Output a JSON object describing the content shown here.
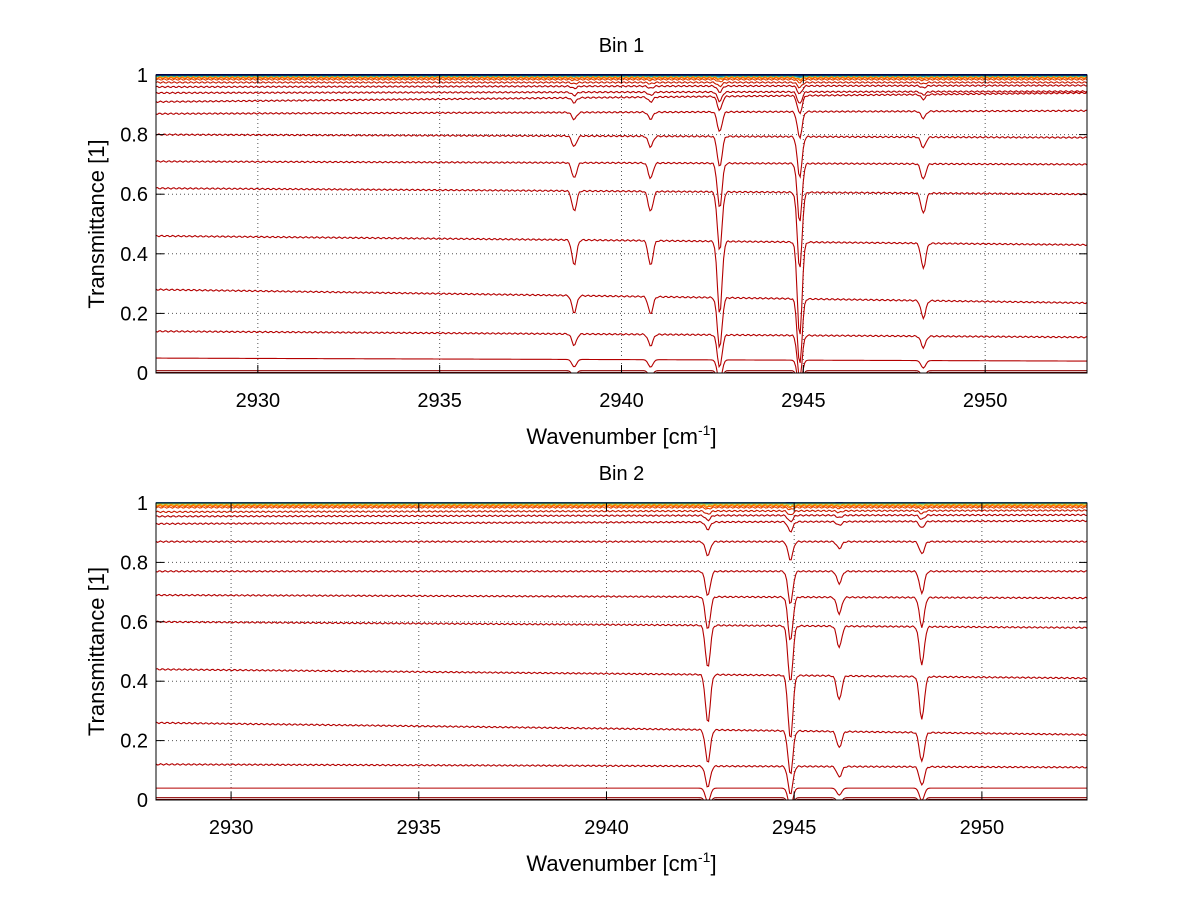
{
  "chart_data": [
    {
      "type": "line",
      "title": "Bin 1",
      "xlabel": "Wavenumber [cm",
      "xlabel_sup": "-1",
      "xlabel_tail": "]",
      "ylabel": "Transmittance [1]",
      "xlim": [
        2927.2,
        2952.8
      ],
      "ylim": [
        0,
        1
      ],
      "xticks": [
        "2930",
        "2935",
        "2940",
        "2945",
        "2950"
      ],
      "xtick_values": [
        2930,
        2935,
        2940,
        2945,
        2950
      ],
      "yticks": [
        "0",
        "0.2",
        "0.4",
        "0.6",
        "0.8",
        "1"
      ],
      "ytick_values": [
        0,
        0.2,
        0.4,
        0.6,
        0.8,
        1
      ],
      "grid": true,
      "absorption_lines": [
        {
          "x": 2938.7,
          "w": 0.9
        },
        {
          "x": 2940.8,
          "w": 0.9
        },
        {
          "x": 2942.7,
          "w": 2.6
        },
        {
          "x": 2944.9,
          "w": 3.4
        },
        {
          "x": 2948.3,
          "w": 0.9
        }
      ],
      "series": [
        {
          "start": 1.0,
          "end": 1.0,
          "color": "#00008f"
        },
        {
          "start": 0.998,
          "end": 0.998,
          "color": "#005fbf"
        },
        {
          "start": 0.995,
          "end": 0.995,
          "color": "#20b0a0"
        },
        {
          "start": 0.992,
          "end": 0.992,
          "color": "#f0a000"
        },
        {
          "start": 0.99,
          "end": 0.99,
          "color": "#ff6a00"
        },
        {
          "start": 0.985,
          "end": 0.985,
          "color": "#e04000"
        },
        {
          "start": 0.975,
          "end": 0.975,
          "color": "#c81a00"
        },
        {
          "start": 0.96,
          "end": 0.965,
          "color": "#b40000"
        },
        {
          "start": 0.94,
          "end": 0.945,
          "color": "#b40000"
        },
        {
          "start": 0.91,
          "end": 0.94,
          "color": "#b40000"
        },
        {
          "start": 0.87,
          "end": 0.88,
          "color": "#b40000"
        },
        {
          "start": 0.8,
          "end": 0.79,
          "color": "#b40000"
        },
        {
          "start": 0.71,
          "end": 0.7,
          "color": "#b40000"
        },
        {
          "start": 0.62,
          "end": 0.6,
          "color": "#b40000"
        },
        {
          "start": 0.46,
          "end": 0.43,
          "color": "#b40000"
        },
        {
          "start": 0.28,
          "end": 0.235,
          "color": "#b40000"
        },
        {
          "start": 0.14,
          "end": 0.12,
          "color": "#b40000"
        },
        {
          "start": 0.05,
          "end": 0.04,
          "color": "#b40000"
        },
        {
          "start": 0.008,
          "end": 0.008,
          "color": "#900000"
        },
        {
          "start": 0.002,
          "end": 0.002,
          "color": "#7a0000"
        }
      ]
    },
    {
      "type": "line",
      "title": "Bin 2",
      "xlabel": "Wavenumber [cm",
      "xlabel_sup": "-1",
      "xlabel_tail": "]",
      "ylabel": "Transmittance [1]",
      "xlim": [
        2928.0,
        2952.8
      ],
      "ylim": [
        0,
        1
      ],
      "xticks": [
        "2930",
        "2935",
        "2940",
        "2945",
        "2950"
      ],
      "xtick_values": [
        2930,
        2935,
        2940,
        2945,
        2950
      ],
      "yticks": [
        "0",
        "0.2",
        "0.4",
        "0.6",
        "0.8",
        "1"
      ],
      "ytick_values": [
        0,
        0.2,
        0.4,
        0.6,
        0.8,
        1
      ],
      "grid": true,
      "absorption_lines": [
        {
          "x": 2942.7,
          "w": 1.8
        },
        {
          "x": 2944.9,
          "w": 2.4
        },
        {
          "x": 2946.2,
          "w": 0.9
        },
        {
          "x": 2948.4,
          "w": 1.6
        }
      ],
      "series": [
        {
          "start": 1.0,
          "end": 1.0,
          "color": "#00008f"
        },
        {
          "start": 0.999,
          "end": 0.999,
          "color": "#40e0d0"
        },
        {
          "start": 0.996,
          "end": 0.996,
          "color": "#a0d060"
        },
        {
          "start": 0.993,
          "end": 0.993,
          "color": "#f0a000"
        },
        {
          "start": 0.99,
          "end": 0.99,
          "color": "#ff6a00"
        },
        {
          "start": 0.985,
          "end": 0.985,
          "color": "#e04000"
        },
        {
          "start": 0.97,
          "end": 0.975,
          "color": "#c81a00"
        },
        {
          "start": 0.955,
          "end": 0.96,
          "color": "#b40000"
        },
        {
          "start": 0.93,
          "end": 0.94,
          "color": "#b40000"
        },
        {
          "start": 0.87,
          "end": 0.87,
          "color": "#b40000"
        },
        {
          "start": 0.77,
          "end": 0.77,
          "color": "#b40000"
        },
        {
          "start": 0.69,
          "end": 0.68,
          "color": "#b40000"
        },
        {
          "start": 0.6,
          "end": 0.58,
          "color": "#b40000"
        },
        {
          "start": 0.44,
          "end": 0.41,
          "color": "#b40000"
        },
        {
          "start": 0.26,
          "end": 0.22,
          "color": "#b40000"
        },
        {
          "start": 0.12,
          "end": 0.11,
          "color": "#b40000"
        },
        {
          "start": 0.04,
          "end": 0.04,
          "color": "#b40000"
        },
        {
          "start": 0.008,
          "end": 0.008,
          "color": "#900000"
        },
        {
          "start": 0.002,
          "end": 0.002,
          "color": "#7a0000"
        }
      ]
    }
  ]
}
